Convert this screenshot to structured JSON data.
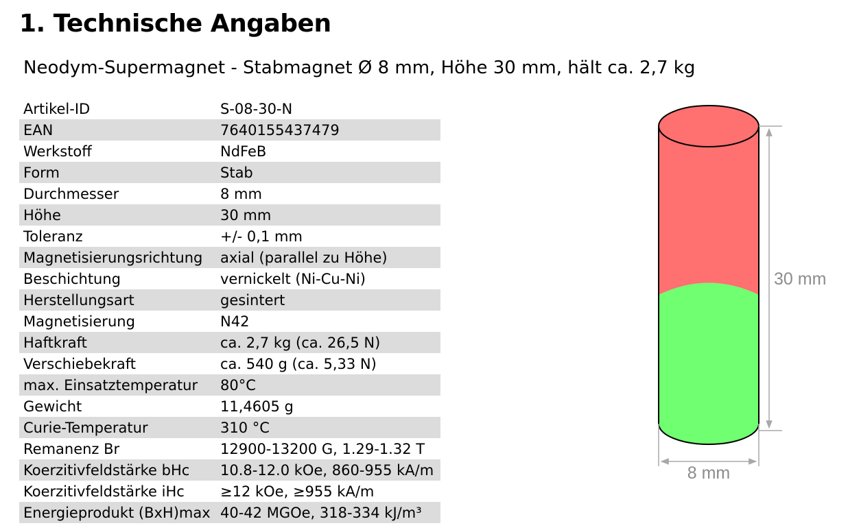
{
  "heading": "1. Technische Angaben",
  "subtitle": "Neodym-Supermagnet - Stabmagnet Ø 8 mm, Höhe 30 mm, hält ca. 2,7 kg",
  "specs": [
    {
      "key": "Artikel-ID",
      "value": "S-08-30-N"
    },
    {
      "key": "EAN",
      "value": "7640155437479"
    },
    {
      "key": "Werkstoff",
      "value": "NdFeB"
    },
    {
      "key": "Form",
      "value": "Stab"
    },
    {
      "key": "Durchmesser",
      "value": "8 mm"
    },
    {
      "key": "Höhe",
      "value": "30 mm"
    },
    {
      "key": "Toleranz",
      "value": "+/- 0,1 mm"
    },
    {
      "key": "Magnetisierungsrichtung",
      "value": "axial (parallel zu Höhe)"
    },
    {
      "key": "Beschichtung",
      "value": "vernickelt (Ni-Cu-Ni)"
    },
    {
      "key": "Herstellungsart",
      "value": "gesintert"
    },
    {
      "key": "Magnetisierung",
      "value": "N42"
    },
    {
      "key": "Haftkraft",
      "value": "ca. 2,7 kg (ca. 26,5 N)"
    },
    {
      "key": "Verschiebekraft",
      "value": "ca. 540 g (ca. 5,33 N)"
    },
    {
      "key": "max. Einsatztemperatur",
      "value": "80°C"
    },
    {
      "key": "Gewicht",
      "value": "11,4605 g"
    },
    {
      "key": "Curie-Temperatur",
      "value": "310 °C"
    },
    {
      "key": "Remanenz Br",
      "value": "12900-13200 G, 1.29-1.32 T"
    },
    {
      "key": "Koerzitivfeldstärke bHc",
      "value": "10.8-12.0 kOe, 860-955 kA/m"
    },
    {
      "key": "Koerzitivfeldstärke iHc",
      "value": "≥12 kOe, ≥955 kA/m"
    },
    {
      "key": "Energieprodukt (BxH)max",
      "value": "40-42 MGOe, 318-334 kJ/m³"
    }
  ],
  "diagram": {
    "height_label": "30 mm",
    "diameter_label": "8 mm",
    "colors": {
      "north": "#ff7070",
      "south": "#70ff70",
      "dimension": "#a8a8a8"
    }
  }
}
